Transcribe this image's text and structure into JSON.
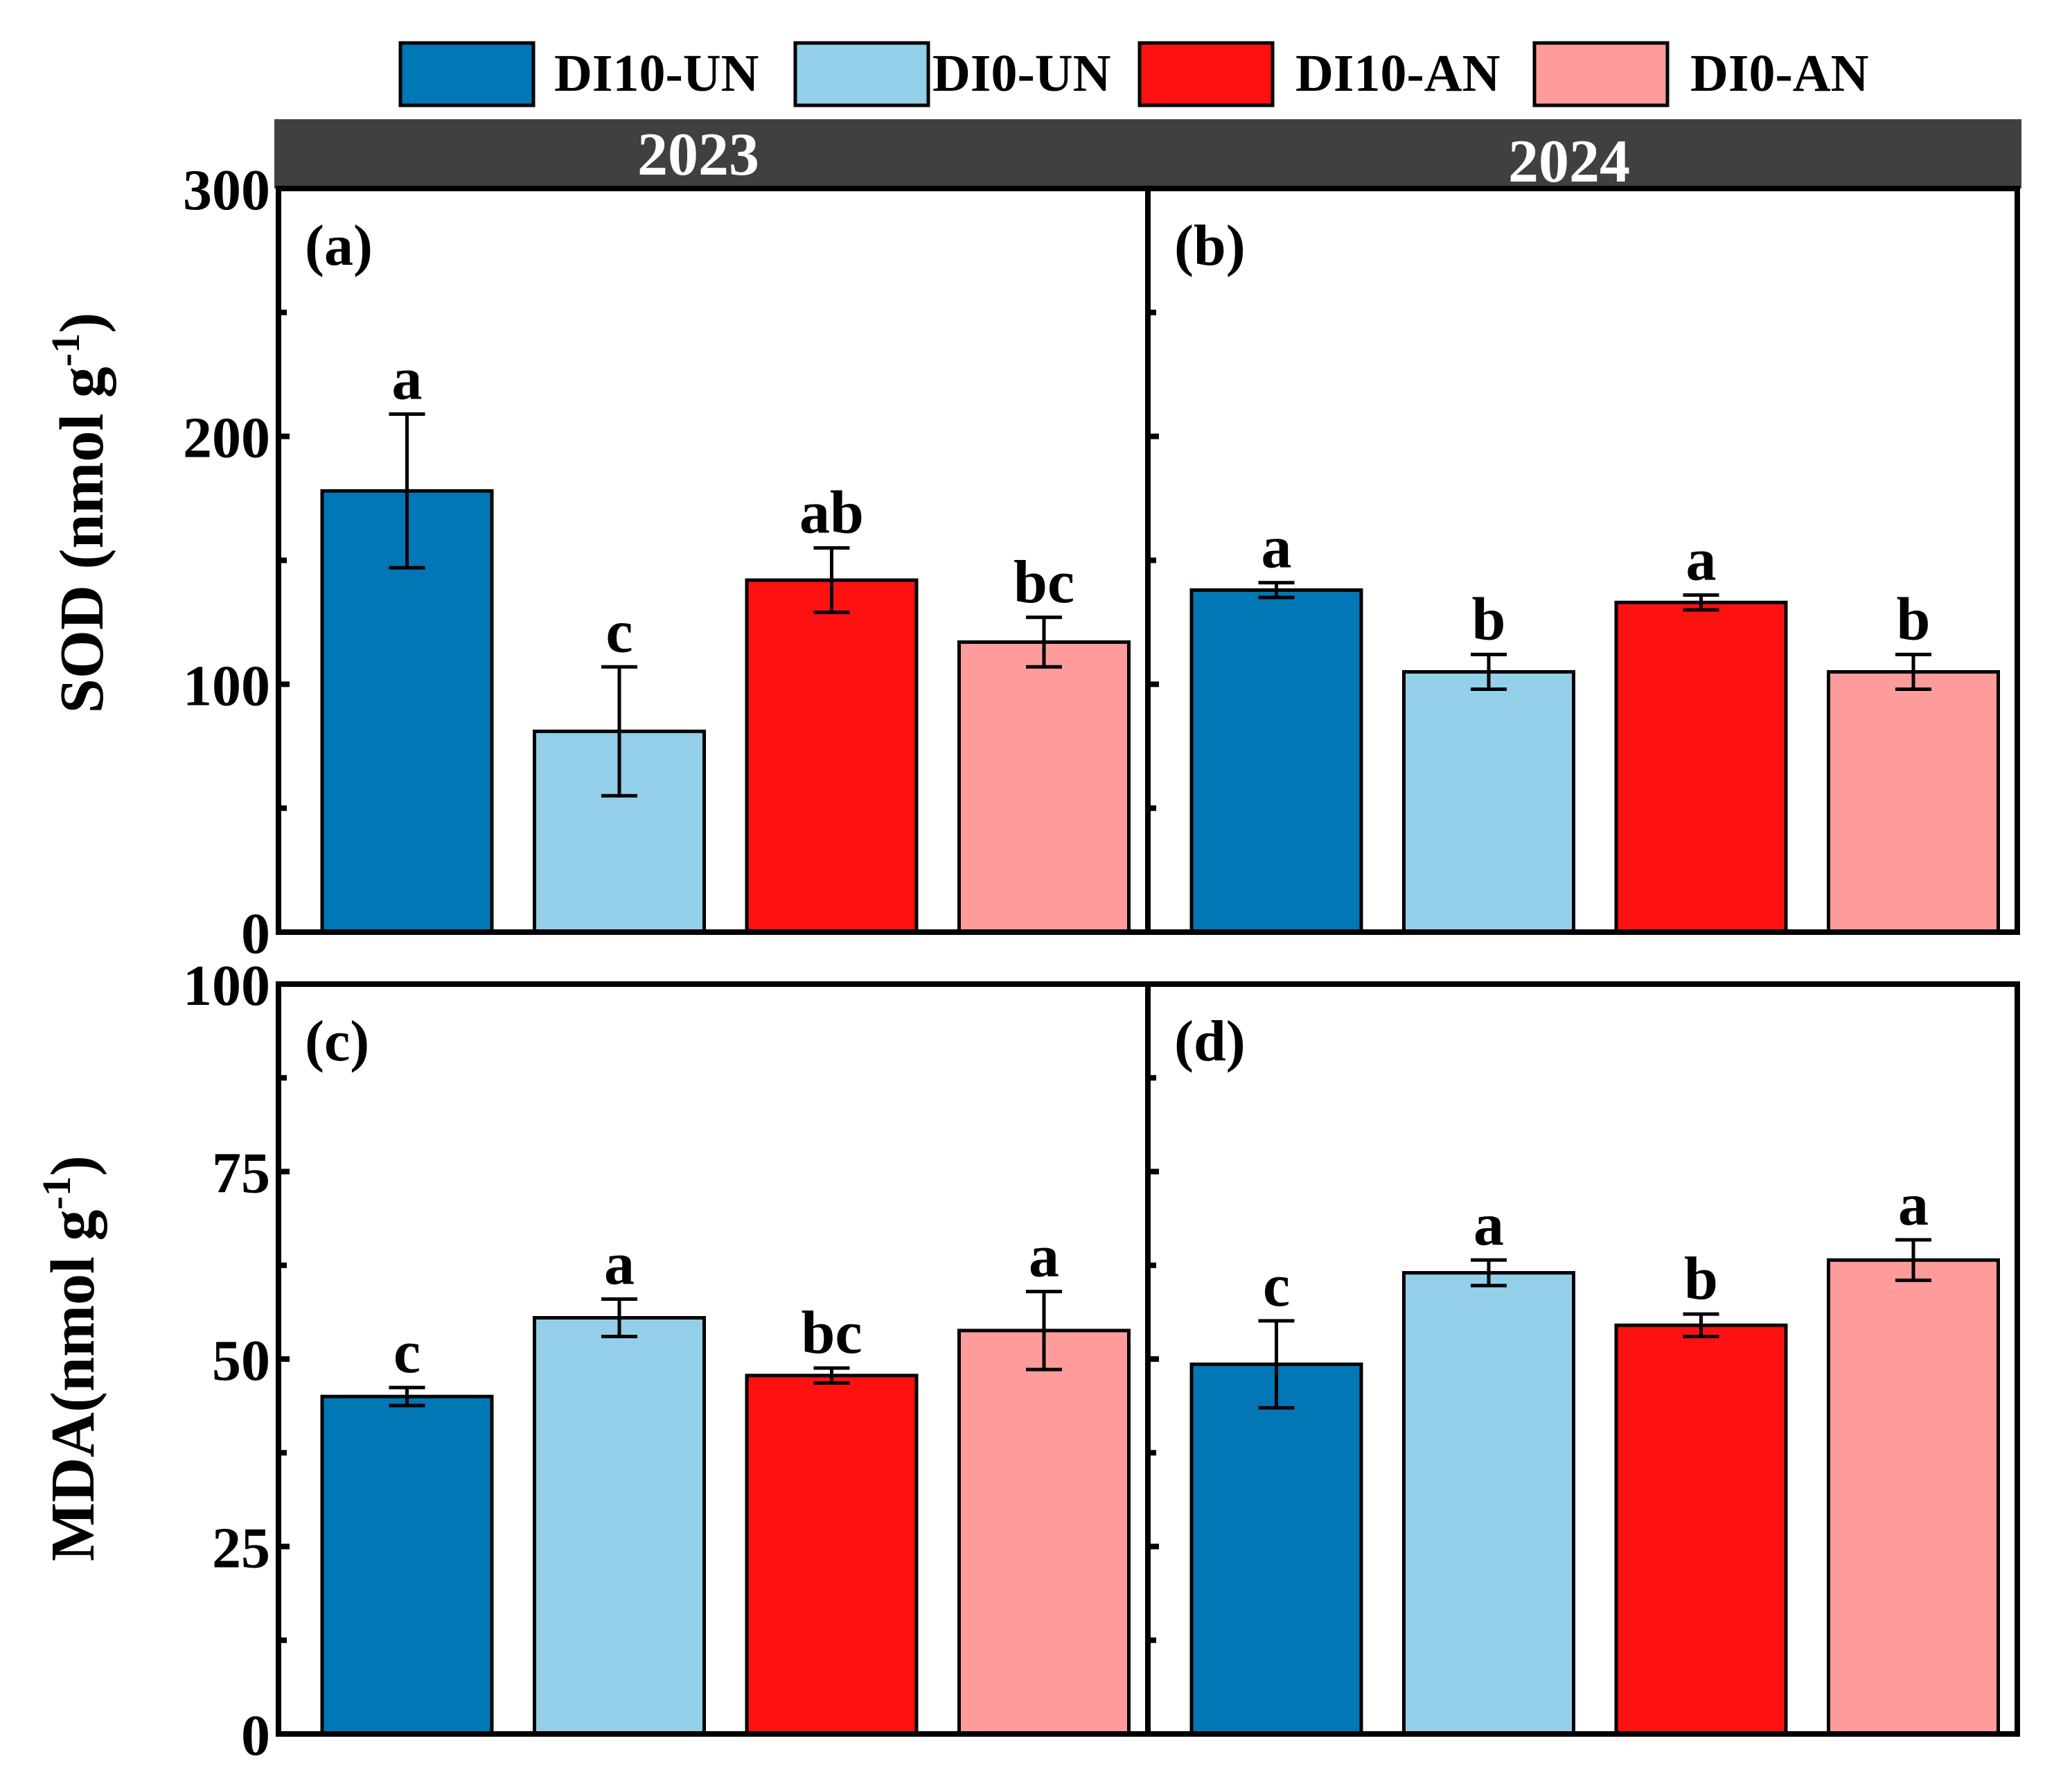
{
  "legend": [
    {
      "label": "DI10-UN",
      "color": "#0177B6"
    },
    {
      "label": "DI0-UN",
      "color": "#93CFE8"
    },
    {
      "label": "DI10-AN",
      "color": "#FE1111"
    },
    {
      "label": "DI0-AN",
      "color": "#FE9C9B"
    }
  ],
  "strip": {
    "year_left": "2023",
    "year_right": "2024",
    "color": "#404040"
  },
  "y_labels": {
    "sod": {
      "main": "SOD  (nmol g",
      "sup": "-1",
      "end": ")"
    },
    "mda": {
      "main": "MDA(nmol g",
      "sup": "-1",
      "end": ")"
    }
  },
  "chart_data": [
    {
      "type": "bar",
      "panel": "(a)",
      "year": "2023",
      "variable": "SOD",
      "categories": [
        "DI10-UN",
        "DI0-UN",
        "DI10-AN",
        "DI0-AN"
      ],
      "values": [
        178,
        81,
        142,
        117
      ],
      "errors": [
        31,
        26,
        13,
        10
      ],
      "letters": [
        "a",
        "c",
        "ab",
        "bc"
      ],
      "ylim": [
        0,
        300
      ],
      "yticks": [
        0,
        100,
        200,
        300
      ],
      "ymajor_labels": [
        "0",
        "100",
        "200",
        "300"
      ],
      "yminor_step": 50
    },
    {
      "type": "bar",
      "panel": "(b)",
      "year": "2024",
      "variable": "SOD",
      "categories": [
        "DI10-UN",
        "DI0-UN",
        "DI10-AN",
        "DI0-AN"
      ],
      "values": [
        138,
        105,
        133,
        105
      ],
      "errors": [
        3,
        7,
        3,
        7
      ],
      "letters": [
        "a",
        "b",
        "a",
        "b"
      ],
      "ylim": [
        0,
        300
      ],
      "yticks": [
        0,
        100,
        200,
        300
      ],
      "yminor_step": 50
    },
    {
      "type": "bar",
      "panel": "(c)",
      "year": "2023",
      "variable": "MDA",
      "categories": [
        "DI10-UN",
        "DI0-UN",
        "DI10-AN",
        "DI0-AN"
      ],
      "values": [
        45,
        55.5,
        47.8,
        53.8
      ],
      "errors": [
        1.2,
        2.5,
        1.0,
        5.2
      ],
      "letters": [
        "c",
        "a",
        "bc",
        "a"
      ],
      "ylim": [
        0,
        100
      ],
      "yticks": [
        0,
        25,
        50,
        75,
        100
      ],
      "ymajor_labels": [
        "0",
        "25",
        "50",
        "75",
        "100"
      ],
      "yminor_step": 12.5
    },
    {
      "type": "bar",
      "panel": "(d)",
      "year": "2024",
      "variable": "MDA",
      "categories": [
        "DI10-UN",
        "DI0-UN",
        "DI10-AN",
        "DI0-AN"
      ],
      "values": [
        49.3,
        61.5,
        54.5,
        63.2
      ],
      "errors": [
        5.8,
        1.7,
        1.5,
        2.7
      ],
      "letters": [
        "c",
        "a",
        "b",
        "a"
      ],
      "ylim": [
        0,
        100
      ],
      "yticks": [
        0,
        25,
        50,
        75,
        100
      ],
      "yminor_step": 12.5
    }
  ]
}
